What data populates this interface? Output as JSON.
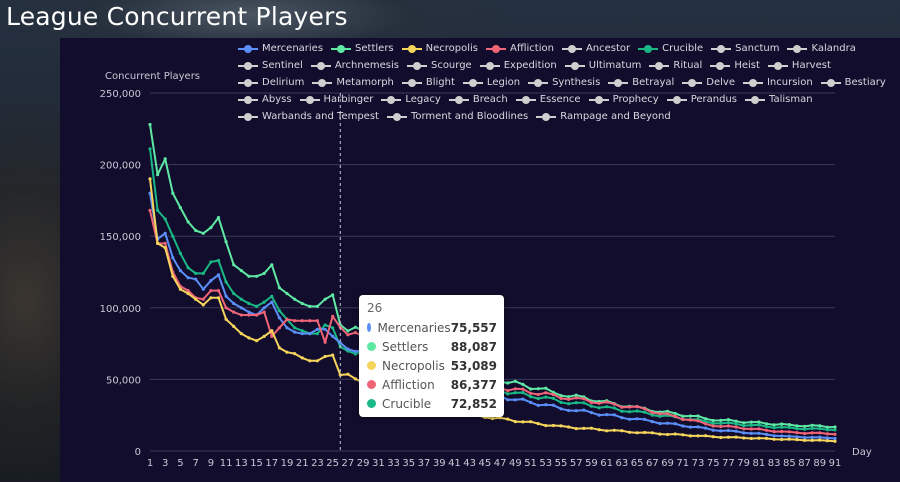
{
  "page": {
    "title": "League Concurrent Players"
  },
  "colors": {
    "panel_bg": "#120d2c",
    "grid": "#3b3a5a",
    "axis_text": "#c8c8d4",
    "inactive": "#cfcfcf",
    "Mercenaries": "#5b8ff9",
    "Settlers": "#5ee8a4",
    "Necropolis": "#f6d55c",
    "Affliction": "#f06478",
    "Crucible": "#19b885"
  },
  "legend": [
    {
      "name": "Mercenaries",
      "active": true
    },
    {
      "name": "Settlers",
      "active": true
    },
    {
      "name": "Necropolis",
      "active": true
    },
    {
      "name": "Affliction",
      "active": true
    },
    {
      "name": "Ancestor",
      "active": false
    },
    {
      "name": "Crucible",
      "active": true
    },
    {
      "name": "Sanctum",
      "active": false
    },
    {
      "name": "Kalandra",
      "active": false
    },
    {
      "name": "Sentinel",
      "active": false
    },
    {
      "name": "Archnemesis",
      "active": false
    },
    {
      "name": "Scourge",
      "active": false
    },
    {
      "name": "Expedition",
      "active": false
    },
    {
      "name": "Ultimatum",
      "active": false
    },
    {
      "name": "Ritual",
      "active": false
    },
    {
      "name": "Heist",
      "active": false
    },
    {
      "name": "Harvest",
      "active": false
    },
    {
      "name": "Delirium",
      "active": false
    },
    {
      "name": "Metamorph",
      "active": false
    },
    {
      "name": "Blight",
      "active": false
    },
    {
      "name": "Legion",
      "active": false
    },
    {
      "name": "Synthesis",
      "active": false
    },
    {
      "name": "Betrayal",
      "active": false
    },
    {
      "name": "Delve",
      "active": false
    },
    {
      "name": "Incursion",
      "active": false
    },
    {
      "name": "Bestiary",
      "active": false
    },
    {
      "name": "Abyss",
      "active": false
    },
    {
      "name": "Harbinger",
      "active": false
    },
    {
      "name": "Legacy",
      "active": false
    },
    {
      "name": "Breach",
      "active": false
    },
    {
      "name": "Essence",
      "active": false
    },
    {
      "name": "Prophecy",
      "active": false
    },
    {
      "name": "Perandus",
      "active": false
    },
    {
      "name": "Talisman",
      "active": false
    },
    {
      "name": "Warbands and Tempest",
      "active": false
    },
    {
      "name": "Torment and Bloodlines",
      "active": false
    },
    {
      "name": "Rampage and Beyond",
      "active": false
    }
  ],
  "tooltip": {
    "title": "26",
    "rows": [
      {
        "name": "Mercenaries",
        "value": "75,557"
      },
      {
        "name": "Settlers",
        "value": "88,087"
      },
      {
        "name": "Necropolis",
        "value": "53,089"
      },
      {
        "name": "Affliction",
        "value": "86,377"
      },
      {
        "name": "Crucible",
        "value": "72,852"
      }
    ]
  },
  "chart_data": {
    "type": "line",
    "title": "League Concurrent Players",
    "ylabel": "Concurrent Players",
    "xlabel": "Day",
    "xlim": [
      1,
      91
    ],
    "ylim": [
      0,
      250000
    ],
    "y_ticks": [
      0,
      50000,
      100000,
      150000,
      200000,
      250000
    ],
    "y_tick_labels": [
      "0",
      "50,000",
      "100,000",
      "150,000",
      "200,000",
      "250,000"
    ],
    "x_tick_labels": [
      "1",
      "3",
      "5",
      "7",
      "9",
      "11",
      "13",
      "15",
      "17",
      "19",
      "21",
      "23",
      "25",
      "27",
      "29",
      "31",
      "33",
      "35",
      "37",
      "39",
      "41",
      "43",
      "45",
      "47",
      "49",
      "51",
      "53",
      "55",
      "57",
      "59",
      "61",
      "63",
      "65",
      "67",
      "69",
      "71",
      "73",
      "75",
      "77",
      "79",
      "81",
      "83",
      "85",
      "87",
      "89",
      "91"
    ],
    "crosshair_day": 26,
    "series": [
      {
        "name": "Settlers",
        "anchors": [
          [
            1,
            228000
          ],
          [
            2,
            193000
          ],
          [
            3,
            204000
          ],
          [
            4,
            180000
          ],
          [
            5,
            170000
          ],
          [
            6,
            160000
          ],
          [
            7,
            154000
          ],
          [
            8,
            152000
          ],
          [
            9,
            156000
          ],
          [
            10,
            163000
          ],
          [
            11,
            146000
          ],
          [
            12,
            130000
          ],
          [
            13,
            126000
          ],
          [
            14,
            122000
          ],
          [
            15,
            122000
          ],
          [
            16,
            124000
          ],
          [
            17,
            130000
          ],
          [
            18,
            114000
          ],
          [
            19,
            110000
          ],
          [
            20,
            106000
          ],
          [
            21,
            103000
          ],
          [
            22,
            101000
          ],
          [
            23,
            101000
          ],
          [
            24,
            106000
          ],
          [
            25,
            109000
          ],
          [
            26,
            88087
          ],
          [
            35,
            71000
          ],
          [
            45,
            52000
          ],
          [
            55,
            40000
          ],
          [
            65,
            30000
          ],
          [
            75,
            22000
          ],
          [
            85,
            18000
          ],
          [
            91,
            17000
          ]
        ]
      },
      {
        "name": "Crucible",
        "anchors": [
          [
            1,
            211000
          ],
          [
            2,
            168000
          ],
          [
            3,
            162000
          ],
          [
            4,
            150000
          ],
          [
            5,
            138000
          ],
          [
            6,
            128000
          ],
          [
            7,
            124000
          ],
          [
            8,
            124000
          ],
          [
            9,
            132000
          ],
          [
            10,
            133000
          ],
          [
            11,
            118000
          ],
          [
            12,
            110000
          ],
          [
            13,
            106000
          ],
          [
            14,
            103000
          ],
          [
            15,
            101000
          ],
          [
            16,
            104000
          ],
          [
            17,
            108000
          ],
          [
            18,
            98000
          ],
          [
            19,
            92000
          ],
          [
            20,
            86000
          ],
          [
            21,
            84000
          ],
          [
            22,
            82000
          ],
          [
            23,
            82000
          ],
          [
            24,
            88000
          ],
          [
            25,
            86000
          ],
          [
            26,
            72852
          ],
          [
            35,
            58000
          ],
          [
            45,
            44000
          ],
          [
            55,
            35000
          ],
          [
            65,
            27000
          ],
          [
            75,
            20000
          ],
          [
            85,
            16000
          ],
          [
            91,
            15000
          ]
        ]
      },
      {
        "name": "Mercenaries",
        "anchors": [
          [
            1,
            180000
          ],
          [
            2,
            148000
          ],
          [
            3,
            152000
          ],
          [
            4,
            135000
          ],
          [
            5,
            126000
          ],
          [
            6,
            121000
          ],
          [
            7,
            120000
          ],
          [
            8,
            113000
          ],
          [
            9,
            119000
          ],
          [
            10,
            123000
          ],
          [
            11,
            108000
          ],
          [
            12,
            103000
          ],
          [
            13,
            100000
          ],
          [
            14,
            97000
          ],
          [
            15,
            95000
          ],
          [
            16,
            100000
          ],
          [
            17,
            104000
          ],
          [
            18,
            93000
          ],
          [
            19,
            86000
          ],
          [
            20,
            83000
          ],
          [
            21,
            82000
          ],
          [
            22,
            82000
          ],
          [
            23,
            85000
          ],
          [
            24,
            85000
          ],
          [
            25,
            80000
          ],
          [
            26,
            75557
          ],
          [
            35,
            54000
          ],
          [
            45,
            40000
          ],
          [
            55,
            30000
          ],
          [
            65,
            22000
          ],
          [
            75,
            15000
          ],
          [
            85,
            10000
          ],
          [
            91,
            9000
          ]
        ]
      },
      {
        "name": "Affliction",
        "anchors": [
          [
            1,
            168000
          ],
          [
            2,
            145000
          ],
          [
            3,
            145000
          ],
          [
            4,
            125000
          ],
          [
            5,
            115000
          ],
          [
            6,
            112000
          ],
          [
            7,
            107000
          ],
          [
            8,
            106000
          ],
          [
            9,
            112000
          ],
          [
            10,
            112000
          ],
          [
            11,
            100000
          ],
          [
            12,
            97000
          ],
          [
            13,
            95000
          ],
          [
            14,
            95000
          ],
          [
            15,
            95000
          ],
          [
            16,
            97000
          ],
          [
            17,
            80000
          ],
          [
            18,
            86000
          ],
          [
            19,
            92000
          ],
          [
            20,
            91000
          ],
          [
            21,
            91000
          ],
          [
            22,
            91000
          ],
          [
            23,
            91000
          ],
          [
            24,
            76000
          ],
          [
            25,
            94000
          ],
          [
            26,
            86377
          ],
          [
            35,
            62000
          ],
          [
            45,
            46000
          ],
          [
            55,
            38000
          ],
          [
            65,
            30000
          ],
          [
            75,
            18000
          ],
          [
            85,
            13000
          ],
          [
            91,
            12000
          ]
        ]
      },
      {
        "name": "Necropolis",
        "anchors": [
          [
            1,
            190000
          ],
          [
            2,
            145000
          ],
          [
            3,
            142000
          ],
          [
            4,
            122000
          ],
          [
            5,
            113000
          ],
          [
            6,
            110000
          ],
          [
            7,
            106000
          ],
          [
            8,
            102000
          ],
          [
            9,
            107000
          ],
          [
            10,
            107000
          ],
          [
            11,
            92000
          ],
          [
            12,
            87000
          ],
          [
            13,
            82000
          ],
          [
            14,
            79000
          ],
          [
            15,
            77000
          ],
          [
            16,
            80000
          ],
          [
            17,
            84000
          ],
          [
            18,
            72000
          ],
          [
            19,
            69000
          ],
          [
            20,
            68000
          ],
          [
            21,
            65000
          ],
          [
            22,
            63000
          ],
          [
            23,
            63000
          ],
          [
            24,
            66000
          ],
          [
            25,
            67000
          ],
          [
            26,
            53089
          ],
          [
            30,
            48000
          ],
          [
            35,
            40000
          ],
          [
            45,
            24000
          ],
          [
            55,
            17000
          ],
          [
            65,
            13000
          ],
          [
            75,
            10000
          ],
          [
            85,
            8000
          ],
          [
            91,
            7000
          ]
        ]
      }
    ]
  }
}
